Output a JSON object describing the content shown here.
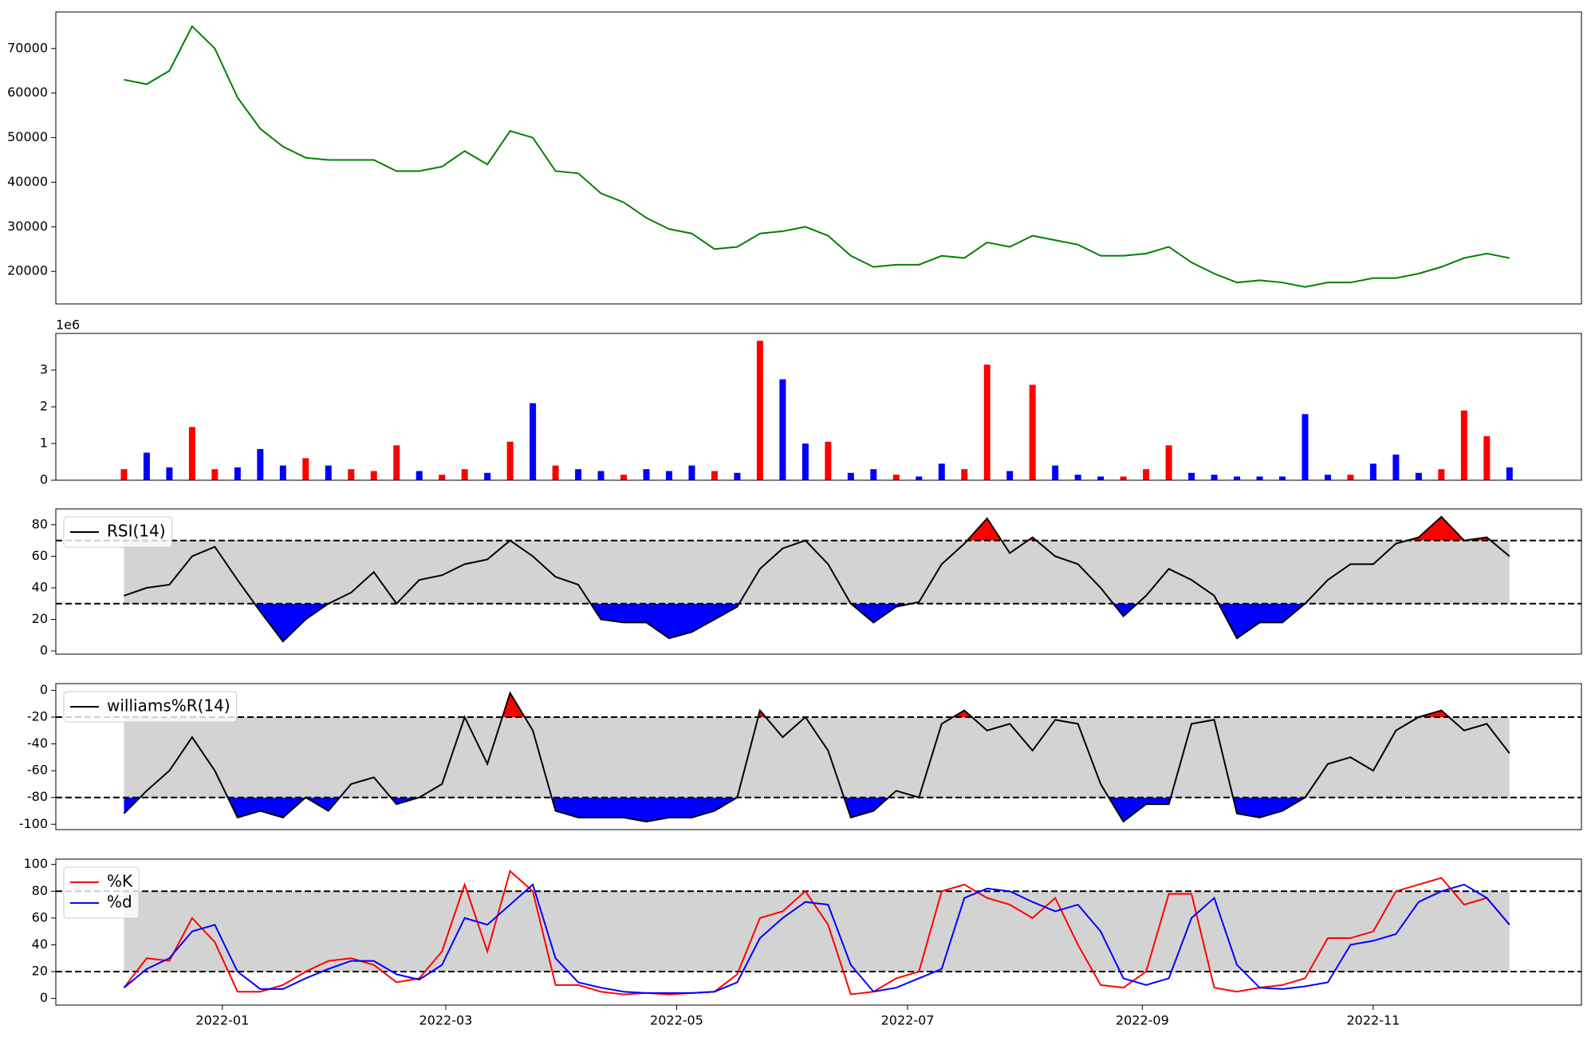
{
  "chart_data": [
    {
      "type": "line",
      "x": [
        -26,
        -20,
        -14,
        -8,
        -2,
        4,
        10,
        16,
        22,
        28,
        34,
        40,
        46,
        52,
        58,
        64,
        70,
        76,
        82,
        88,
        94,
        100,
        106,
        112,
        118,
        124,
        130,
        136,
        142,
        148,
        154,
        160,
        166,
        172,
        178,
        184,
        190,
        196,
        202,
        208,
        214,
        220,
        226,
        232,
        238,
        244,
        250,
        256,
        262,
        268,
        274,
        280,
        286,
        292,
        298,
        304,
        310,
        316,
        322,
        328,
        334,
        340
      ],
      "xlim": [
        -44,
        359
      ],
      "ylim": [
        12700,
        78200
      ],
      "yticks": [
        20000,
        30000,
        40000,
        50000,
        60000,
        70000
      ],
      "series": [
        {
          "color": "green",
          "values": [
            63000,
            62000,
            65000,
            75000,
            70000,
            59000,
            52000,
            48000,
            45500,
            45000,
            45000,
            45000,
            42500,
            42500,
            43500,
            47000,
            44000,
            51500,
            50000,
            42500,
            42000,
            37500,
            35500,
            32000,
            29500,
            28500,
            25000,
            25500,
            28500,
            29000,
            30000,
            28000,
            23500,
            21000,
            21500,
            21500,
            23500,
            23000,
            26500,
            25500,
            28000,
            27000,
            26000,
            23500,
            23500,
            24000,
            25500,
            22000,
            19500,
            17500,
            18000,
            17500,
            16500,
            17500,
            17500,
            18500,
            18500,
            19500,
            21000,
            23000,
            24000,
            23000
          ]
        }
      ]
    },
    {
      "type": "bar",
      "x": [
        -26,
        -20,
        -14,
        -8,
        -2,
        4,
        10,
        16,
        22,
        28,
        34,
        40,
        46,
        52,
        58,
        64,
        70,
        76,
        82,
        88,
        94,
        100,
        106,
        112,
        118,
        124,
        130,
        136,
        142,
        148,
        154,
        160,
        166,
        172,
        178,
        184,
        190,
        196,
        202,
        208,
        214,
        220,
        226,
        232,
        238,
        244,
        250,
        256,
        262,
        268,
        274,
        280,
        286,
        292,
        298,
        304,
        310,
        316,
        322,
        328,
        334,
        340
      ],
      "xlim": [
        -44,
        359
      ],
      "ylim": [
        0,
        4000000
      ],
      "offset_label": "1e6",
      "yticks": [
        0,
        {
          "value": 1000000,
          "label": "1"
        },
        {
          "value": 2000000,
          "label": "2"
        },
        {
          "value": 3000000,
          "label": "3"
        }
      ],
      "series": [
        {
          "values": [
            300000,
            750000,
            350000,
            1450000,
            300000,
            350000,
            850000,
            400000,
            600000,
            400000,
            300000,
            250000,
            950000,
            250000,
            150000,
            300000,
            200000,
            1050000,
            2100000,
            400000,
            300000,
            250000,
            150000,
            300000,
            250000,
            400000,
            250000,
            200000,
            3800000,
            2750000,
            1000000,
            1050000,
            200000,
            300000,
            150000,
            100000,
            450000,
            300000,
            3150000,
            250000,
            2600000,
            400000,
            150000,
            100000,
            100000,
            300000,
            950000,
            200000,
            150000,
            100000,
            100000,
            100000,
            1800000,
            150000,
            150000,
            450000,
            700000,
            200000,
            300000,
            1900000,
            1200000,
            350000
          ],
          "colors": [
            "red",
            "blue",
            "blue",
            "red",
            "red",
            "blue",
            "blue",
            "blue",
            "red",
            "blue",
            "red",
            "red",
            "red",
            "blue",
            "red",
            "red",
            "blue",
            "red",
            "blue",
            "red",
            "blue",
            "blue",
            "red",
            "blue",
            "blue",
            "blue",
            "red",
            "blue",
            "red",
            "blue",
            "blue",
            "red",
            "blue",
            "blue",
            "red",
            "blue",
            "blue",
            "red",
            "red",
            "blue",
            "red",
            "blue",
            "blue",
            "blue",
            "red",
            "red",
            "red",
            "blue",
            "blue",
            "blue",
            "blue",
            "blue",
            "blue",
            "blue",
            "red",
            "blue",
            "blue",
            "blue",
            "red",
            "red",
            "red",
            "blue"
          ]
        }
      ]
    },
    {
      "type": "line",
      "x": [
        -26,
        -20,
        -14,
        -8,
        -2,
        4,
        10,
        16,
        22,
        28,
        34,
        40,
        46,
        52,
        58,
        64,
        70,
        76,
        82,
        88,
        94,
        100,
        106,
        112,
        118,
        124,
        130,
        136,
        142,
        148,
        154,
        160,
        166,
        172,
        178,
        184,
        190,
        196,
        202,
        208,
        214,
        220,
        226,
        232,
        238,
        244,
        250,
        256,
        262,
        268,
        274,
        280,
        286,
        292,
        298,
        304,
        310,
        316,
        322,
        328,
        334,
        340
      ],
      "xlim": [
        -44,
        359
      ],
      "ylim": [
        -2,
        90
      ],
      "yticks": [
        0,
        20,
        40,
        60,
        80
      ],
      "levels": [
        30,
        70
      ],
      "band_color": "#d3d3d3",
      "fill_above": "red",
      "fill_below": "blue",
      "legend": "upper left",
      "series": [
        {
          "name": "RSI(14)",
          "color": "black",
          "values": [
            35,
            40,
            42,
            60,
            66,
            45,
            25,
            6,
            20,
            30,
            37,
            50,
            30,
            45,
            48,
            55,
            58,
            70,
            60,
            47,
            42,
            20,
            18,
            18,
            8,
            12,
            20,
            28,
            52,
            65,
            70,
            55,
            30,
            18,
            28,
            31,
            55,
            68,
            84,
            62,
            72,
            60,
            55,
            40,
            22,
            35,
            52,
            45,
            35,
            8,
            18,
            18,
            30,
            45,
            55,
            55,
            68,
            72,
            85,
            70,
            72,
            60
          ]
        }
      ]
    },
    {
      "type": "line",
      "x": [
        -26,
        -20,
        -14,
        -8,
        -2,
        4,
        10,
        16,
        22,
        28,
        34,
        40,
        46,
        52,
        58,
        64,
        70,
        76,
        82,
        88,
        94,
        100,
        106,
        112,
        118,
        124,
        130,
        136,
        142,
        148,
        154,
        160,
        166,
        172,
        178,
        184,
        190,
        196,
        202,
        208,
        214,
        220,
        226,
        232,
        238,
        244,
        250,
        256,
        262,
        268,
        274,
        280,
        286,
        292,
        298,
        304,
        310,
        316,
        322,
        328,
        334,
        340
      ],
      "xlim": [
        -44,
        359
      ],
      "ylim": [
        -104,
        5
      ],
      "yticks": [
        -100,
        -80,
        -60,
        -40,
        -20,
        0
      ],
      "levels": [
        -80,
        -20
      ],
      "band_color": "#d3d3d3",
      "fill_above": "red",
      "fill_below": "blue",
      "legend": "upper left",
      "series": [
        {
          "name": "williams%R(14)",
          "color": "black",
          "values": [
            -92,
            -75,
            -60,
            -35,
            -60,
            -95,
            -90,
            -95,
            -80,
            -90,
            -70,
            -65,
            -85,
            -80,
            -70,
            -20,
            -55,
            -2,
            -30,
            -90,
            -95,
            -95,
            -95,
            -98,
            -95,
            -95,
            -90,
            -80,
            -15,
            -35,
            -20,
            -45,
            -95,
            -90,
            -75,
            -80,
            -25,
            -15,
            -30,
            -25,
            -45,
            -22,
            -25,
            -70,
            -98,
            -85,
            -85,
            -25,
            -22,
            -92,
            -95,
            -90,
            -80,
            -55,
            -50,
            -60,
            -30,
            -20,
            -15,
            -30,
            -25,
            -47
          ]
        }
      ]
    },
    {
      "type": "line",
      "x": [
        -26,
        -20,
        -14,
        -8,
        -2,
        4,
        10,
        16,
        22,
        28,
        34,
        40,
        46,
        52,
        58,
        64,
        70,
        76,
        82,
        88,
        94,
        100,
        106,
        112,
        118,
        124,
        130,
        136,
        142,
        148,
        154,
        160,
        166,
        172,
        178,
        184,
        190,
        196,
        202,
        208,
        214,
        220,
        226,
        232,
        238,
        244,
        250,
        256,
        262,
        268,
        274,
        280,
        286,
        292,
        298,
        304,
        310,
        316,
        322,
        328,
        334,
        340
      ],
      "xlim": [
        -44,
        359
      ],
      "ylim": [
        -5,
        104
      ],
      "yticks": [
        0,
        20,
        40,
        60,
        80,
        100
      ],
      "xticks": [
        {
          "value": 0,
          "label": "2022-01"
        },
        {
          "value": 59,
          "label": "2022-03"
        },
        {
          "value": 120,
          "label": "2022-05"
        },
        {
          "value": 181,
          "label": "2022-07"
        },
        {
          "value": 243,
          "label": "2022-09"
        },
        {
          "value": 304,
          "label": "2022-11"
        }
      ],
      "levels": [
        20,
        80
      ],
      "band_color": "#d3d3d3",
      "legend": "upper left",
      "series": [
        {
          "name": "%K",
          "color": "red",
          "values": [
            8,
            30,
            28,
            60,
            42,
            5,
            5,
            10,
            20,
            28,
            30,
            25,
            12,
            15,
            35,
            85,
            35,
            95,
            80,
            10,
            10,
            5,
            3,
            4,
            3,
            4,
            5,
            18,
            60,
            65,
            80,
            55,
            3,
            5,
            15,
            20,
            80,
            85,
            75,
            70,
            60,
            75,
            40,
            10,
            8,
            20,
            78,
            78,
            8,
            5,
            8,
            10,
            15,
            45,
            45,
            50,
            80,
            85,
            90,
            70,
            75,
            55
          ]
        },
        {
          "name": "%d",
          "color": "blue",
          "values": [
            8,
            22,
            30,
            50,
            55,
            20,
            7,
            7,
            15,
            22,
            28,
            28,
            18,
            14,
            25,
            60,
            55,
            70,
            85,
            30,
            12,
            8,
            5,
            4,
            4,
            4,
            5,
            12,
            45,
            60,
            72,
            70,
            25,
            5,
            8,
            15,
            22,
            75,
            82,
            80,
            72,
            65,
            70,
            50,
            15,
            10,
            15,
            60,
            75,
            25,
            8,
            7,
            9,
            12,
            40,
            43,
            48,
            72,
            80,
            85,
            75,
            55
          ]
        }
      ]
    }
  ]
}
